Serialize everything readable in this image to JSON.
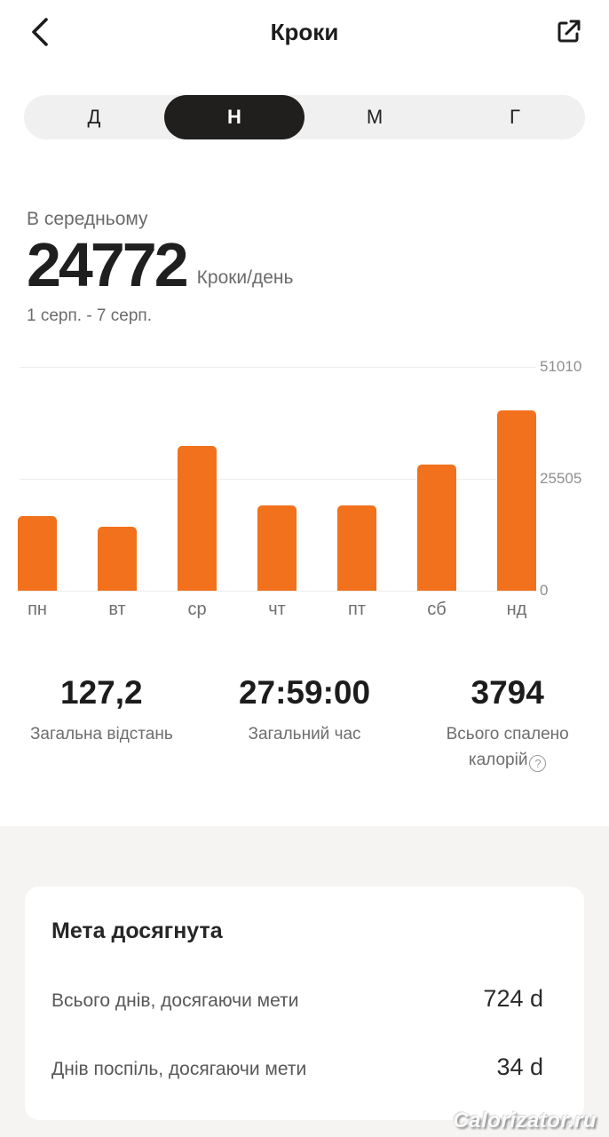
{
  "header": {
    "title": "Кроки"
  },
  "icons": {
    "back": "chevron-left",
    "share": "share-external",
    "help": "?"
  },
  "period_tabs": {
    "options": [
      "Д",
      "Н",
      "М",
      "Г"
    ],
    "selected": "Н",
    "selected_index": 1
  },
  "summary": {
    "label": "В середньому",
    "value": "24772",
    "unit": "Кроки/день",
    "date_range": "1 серп. - 7 серп."
  },
  "chart_data": {
    "type": "bar",
    "categories": [
      "пн",
      "вт",
      "ср",
      "чт",
      "пт",
      "сб",
      "нд"
    ],
    "values": [
      17000,
      14600,
      33000,
      19500,
      19500,
      28700,
      41104
    ],
    "average": 24772,
    "title": "",
    "xlabel": "",
    "ylabel": "Кроки",
    "ylim": [
      0,
      51010
    ],
    "y_ticks": [
      "51010",
      "25505",
      "0"
    ],
    "grid": "horizontal",
    "legend": "none",
    "bar_color": "#f2711c"
  },
  "stats": [
    {
      "value": "127,2",
      "label": "Загальна відстань"
    },
    {
      "value": "27:59:00",
      "label": "Загальний час"
    },
    {
      "value": "3794",
      "label": "Всього спалено калорій"
    }
  ],
  "goal_card": {
    "title": "Мета досягнута",
    "rows": [
      {
        "label": "Всього днів, досягаючи мети",
        "value": "724 d"
      },
      {
        "label": "Днів поспіль, досягаючи мети",
        "value": "34 d"
      }
    ]
  },
  "watermark": "Calorizator.ru",
  "colors": {
    "accent": "#f2711c",
    "tab_selected_bg": "#211e1e",
    "tab_bar_bg": "#f1f0f0",
    "bottom_bg": "#f5f4f3",
    "text_primary": "#1c1c1c",
    "text_secondary": "#6b6b6b"
  }
}
